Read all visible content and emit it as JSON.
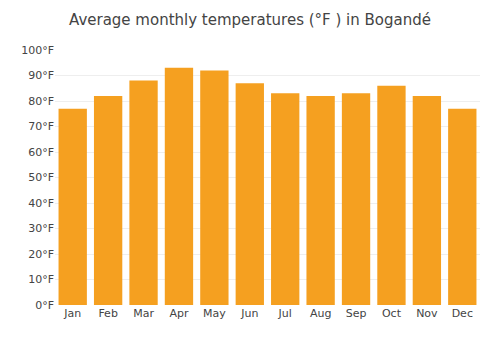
{
  "chart_data": {
    "type": "bar",
    "title": "Average monthly temperatures (°F ) in Bogandé",
    "categories": [
      "Jan",
      "Feb",
      "Mar",
      "Apr",
      "May",
      "Jun",
      "Jul",
      "Aug",
      "Sep",
      "Oct",
      "Nov",
      "Dec"
    ],
    "values": [
      77,
      82,
      88,
      93,
      92,
      87,
      83,
      82,
      83,
      86,
      82,
      77
    ],
    "color": "#F5A020",
    "ylim": [
      0,
      100
    ],
    "yticks": [
      {
        "value": 0,
        "label": "0°F"
      },
      {
        "value": 10,
        "label": "10°F"
      },
      {
        "value": 20,
        "label": "20°F"
      },
      {
        "value": 30,
        "label": "30°F"
      },
      {
        "value": 40,
        "label": "40°F"
      },
      {
        "value": 50,
        "label": "50°F"
      },
      {
        "value": 60,
        "label": "60°F"
      },
      {
        "value": 70,
        "label": "70°F"
      },
      {
        "value": 80,
        "label": "80°F"
      },
      {
        "value": 90,
        "label": "90°F"
      },
      {
        "value": 100,
        "label": "100°F"
      }
    ],
    "grid": true
  }
}
